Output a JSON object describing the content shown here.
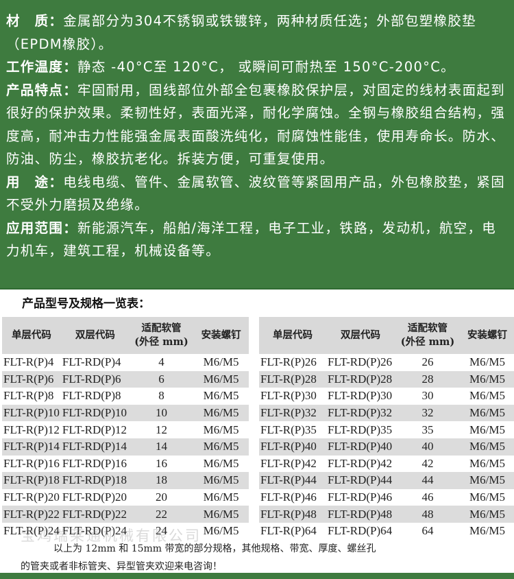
{
  "specs": [
    {
      "label": "材　质：",
      "text": "金属部分为304不锈钢或铁镀锌，两种材质任选；外部包塑橡胶垫（EPDM橡胶）。"
    },
    {
      "label": "工作温度：",
      "text": "静态 -40°C至 120°C， 或瞬间可耐热至 150°C-200°C。"
    },
    {
      "label": "产品特点：",
      "text": "牢固耐用，固线部位外部全包裹橡胶保护层，对固定的线材表面起到很好的保护效果。柔韧性好，表面光泽，耐化学腐蚀。全钢与橡胶组合结构，强度高，耐冲击力性能强金属表面酸洗纯化，耐腐蚀性能佳，使用寿命长。防水、防油、防尘，橡胶抗老化。拆装方便，可重复使用。"
    },
    {
      "label": "用　途：",
      "text": "电线电缆、管件、金属软管、波纹管等紧固用产品，外包橡胶垫，紧固不受外力磨损及绝缘。"
    },
    {
      "label": "应用范围：",
      "text": "新能源汽车，船舶/海洋工程，电子工业，铁路，发动机，航空，电力机车，建筑工程，机械设备等。"
    }
  ],
  "table_title": "产品型号及规格一览表：",
  "headers": [
    "单层代码",
    "双层代码",
    "适配软管",
    "(外径 mm)",
    "安装螺钉"
  ],
  "left_rows": [
    [
      "FLT-R(P)4",
      "FLT-RD(P)4",
      "4",
      "M6/M5"
    ],
    [
      "FLT-R(P)6",
      "FLT-RD(P)6",
      "6",
      "M6/M5"
    ],
    [
      "FLT-R(P)8",
      "FLT-RD(P)8",
      "8",
      "M6/M5"
    ],
    [
      "FLT-R(P)10",
      "FLT-RD(P)10",
      "10",
      "M6/M5"
    ],
    [
      "FLT-R(P)12",
      "FLT-RD(P)12",
      "12",
      "M6/M5"
    ],
    [
      "FLT-R(P)14",
      "FLT-RD(P)14",
      "14",
      "M6/M5"
    ],
    [
      "FLT-R(P)16",
      "FLT-RD(P)16",
      "16",
      "M6/M5"
    ],
    [
      "FLT-R(P)18",
      "FLT-RD(P)18",
      "18",
      "M6/M5"
    ],
    [
      "FLT-R(P)20",
      "FLT-RD(P)20",
      "20",
      "M6/M5"
    ],
    [
      "FLT-R(P)22",
      "FLT-RD(P)22",
      "22",
      "M6/M5"
    ],
    [
      "FLT-R(P)24",
      "FLT-RD(P)24",
      "24",
      "M6/M5"
    ]
  ],
  "right_rows": [
    [
      "FLT-R(P)26",
      "FLT-RD(P)26",
      "26",
      "M6/M5"
    ],
    [
      "FLT-R(P)28",
      "FLT-RD(P)28",
      "28",
      "M6/M5"
    ],
    [
      "FLT-R(P)30",
      "FLT-RD(P)30",
      "30",
      "M6/M5"
    ],
    [
      "FLT-R(P)32",
      "FLT-RD(P)32",
      "32",
      "M6/M5"
    ],
    [
      "FLT-R(P)35",
      "FLT-RD(P)35",
      "35",
      "M6/M5"
    ],
    [
      "FLT-R(P)40",
      "FLT-RD(P)40",
      "40",
      "M6/M5"
    ],
    [
      "FLT-R(P)42",
      "FLT-RD(P)42",
      "42",
      "M6/M5"
    ],
    [
      "FLT-R(P)44",
      "FLT-RD(P)44",
      "44",
      "M6/M5"
    ],
    [
      "FLT-R(P)46",
      "FLT-RD(P)46",
      "46",
      "M6/M5"
    ],
    [
      "FLT-R(P)48",
      "FLT-RD(P)48",
      "48",
      "M6/M5"
    ],
    [
      "FLT-R(P)64",
      "FLT-RD(P)64",
      "64",
      "M6/M5"
    ]
  ],
  "note_line1": "以上为 12mm 和 15mm 带宽的部分规格，其他规格、带宽、厚度、螺丝孔",
  "note_line2": "的管夹或者非标管夹、异型管夹欢迎来电咨询！",
  "watermark": "宝鸡瑞莱通机械有限公司",
  "colors": {
    "green": "#3e7b3f",
    "row_stripe": "#dcdcdc"
  }
}
